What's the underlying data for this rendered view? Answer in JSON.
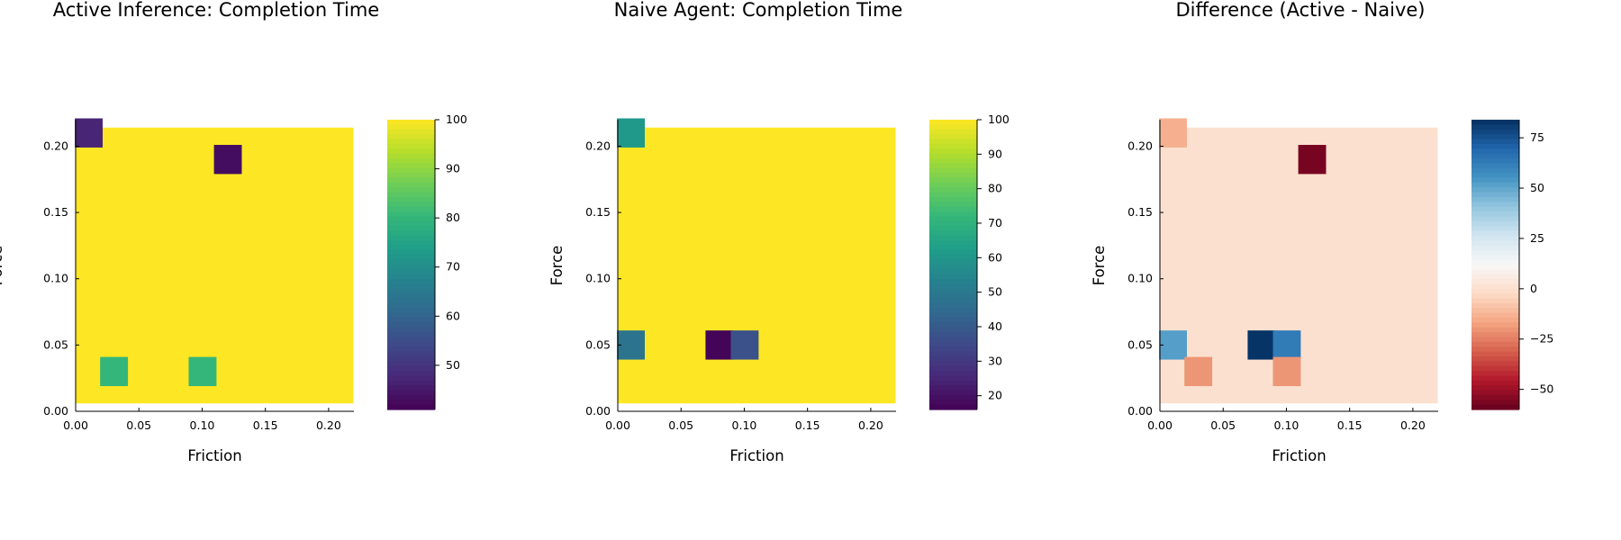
{
  "chart_data": [
    {
      "type": "heatmap",
      "title": "Active Inference: Completion Time",
      "xlabel": "Friction",
      "ylabel": "Force",
      "x_ticks": [
        "0.00",
        "0.05",
        "0.10",
        "0.15",
        "0.20"
      ],
      "y_ticks": [
        "0.00",
        "0.05",
        "0.10",
        "0.15",
        "0.20"
      ],
      "x_range": [
        0.0,
        0.22
      ],
      "y_range": [
        0.0,
        0.22
      ],
      "grid_shape": [
        10,
        10
      ],
      "default_value": 100,
      "cells": [
        {
          "x": 0.01,
          "y": 0.21,
          "value": 47
        },
        {
          "x": 0.12,
          "y": 0.19,
          "value": 43
        },
        {
          "x": 0.03,
          "y": 0.03,
          "value": 80
        },
        {
          "x": 0.1,
          "y": 0.03,
          "value": 80
        }
      ],
      "colormap": "viridis",
      "colorbar": {
        "min": 41,
        "max": 100,
        "ticks": [
          50,
          60,
          70,
          80,
          90,
          100
        ]
      }
    },
    {
      "type": "heatmap",
      "title": "Naive Agent: Completion Time",
      "xlabel": "Friction",
      "ylabel": "Force",
      "x_ticks": [
        "0.00",
        "0.05",
        "0.10",
        "0.15",
        "0.20"
      ],
      "y_ticks": [
        "0.00",
        "0.05",
        "0.10",
        "0.15",
        "0.20"
      ],
      "x_range": [
        0.0,
        0.22
      ],
      "y_range": [
        0.0,
        0.22
      ],
      "grid_shape": [
        10,
        10
      ],
      "default_value": 100,
      "cells": [
        {
          "x": 0.01,
          "y": 0.21,
          "value": 61
        },
        {
          "x": 0.01,
          "y": 0.05,
          "value": 48
        },
        {
          "x": 0.08,
          "y": 0.05,
          "value": 17
        },
        {
          "x": 0.1,
          "y": 0.05,
          "value": 37
        }
      ],
      "colormap": "viridis",
      "colorbar": {
        "min": 16,
        "max": 100,
        "ticks": [
          20,
          30,
          40,
          50,
          60,
          70,
          80,
          90,
          100
        ]
      }
    },
    {
      "type": "heatmap",
      "title": "Difference (Active - Naive)",
      "xlabel": "Friction",
      "ylabel": "Force",
      "x_ticks": [
        "0.00",
        "0.05",
        "0.10",
        "0.15",
        "0.20"
      ],
      "y_ticks": [
        "0.00",
        "0.05",
        "0.10",
        "0.15",
        "0.20"
      ],
      "x_range": [
        0.0,
        0.22
      ],
      "y_range": [
        0.0,
        0.22
      ],
      "grid_shape": [
        10,
        10
      ],
      "default_value": 0,
      "cells": [
        {
          "x": 0.01,
          "y": 0.21,
          "value": -14
        },
        {
          "x": 0.12,
          "y": 0.19,
          "value": -57
        },
        {
          "x": 0.01,
          "y": 0.05,
          "value": 52
        },
        {
          "x": 0.08,
          "y": 0.05,
          "value": 83
        },
        {
          "x": 0.1,
          "y": 0.05,
          "value": 63
        },
        {
          "x": 0.03,
          "y": 0.03,
          "value": -20
        },
        {
          "x": 0.1,
          "y": 0.03,
          "value": -20
        }
      ],
      "colormap": "RdBu",
      "colorbar": {
        "min": -60,
        "max": 84,
        "ticks": [
          -50,
          -25,
          0,
          25,
          50,
          75
        ],
        "tick_labels": [
          "−50",
          "−25",
          "0",
          "25",
          "50",
          "75"
        ]
      }
    }
  ]
}
